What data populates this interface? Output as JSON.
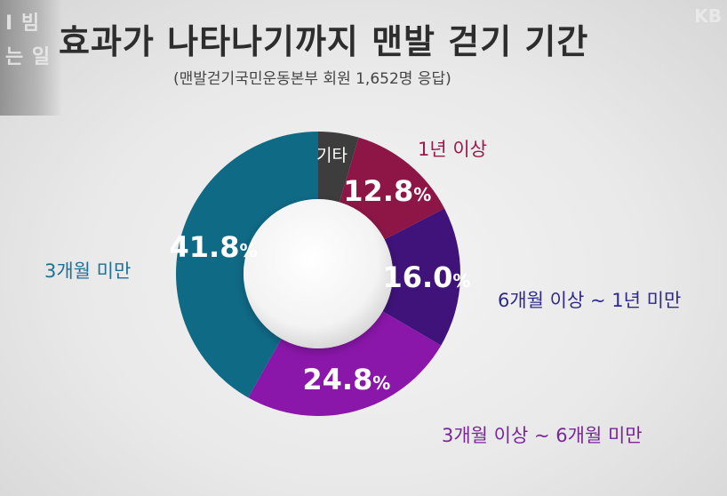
{
  "title": "효과가 나타나기까지 맨발 걷기 기간",
  "subtitle": "(맨발걷기국민운동본부 회원 1,652명 응답)",
  "corner": {
    "line1": "I 빔",
    "line2": "는 일",
    "logo": "KB"
  },
  "chart_data": {
    "type": "pie",
    "variant": "donut",
    "title": "효과가 나타나기까지 맨발 걷기 기간",
    "subtitle": "(맨발걷기국민운동본부 회원 1,652명 응답)",
    "unit": "%",
    "slices": [
      {
        "label": "기타",
        "value": 4.6,
        "value_label": "",
        "color": "#3d3d3d"
      },
      {
        "label": "1년 이상",
        "value": 12.8,
        "value_label": "12.8%",
        "color": "#8e1646"
      },
      {
        "label": "6개월 이상 ~ 1년 미만",
        "value": 16.0,
        "value_label": "16.0%",
        "color": "#3f137a"
      },
      {
        "label": "3개월 이상 ~ 6개월 미만",
        "value": 24.8,
        "value_label": "24.8%",
        "color": "#8a16aa"
      },
      {
        "label": "3개월 미만",
        "value": 41.8,
        "value_label": "41.8%",
        "color": "#0f6a86"
      }
    ],
    "label_colors": {
      "1년 이상": "#9b1a4b",
      "6개월 이상 ~ 1년 미만": "#2e2a8a",
      "3개월 이상 ~ 6개월 미만": "#7a2598",
      "3개월 미만": "#1d7193"
    }
  }
}
